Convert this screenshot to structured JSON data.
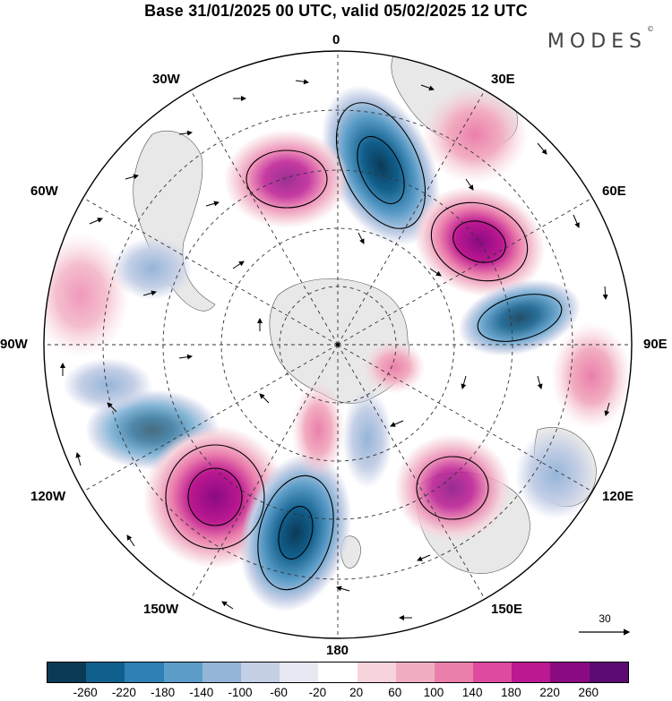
{
  "header": {
    "title": "Base 31/01/2025 00 UTC, valid 05/02/2025 12 UTC",
    "brand": "MODES",
    "brand_mark": "©"
  },
  "map": {
    "projection": "south polar stereographic",
    "variable_unit": "",
    "longitude_labels": {
      "top": "0",
      "top_right": "30E",
      "right_upper": "60E",
      "right": "90E",
      "right_lower": "120E",
      "bottom_right": "150E",
      "bottom": "180",
      "bottom_left": "150W",
      "left_lower": "120W",
      "left": "90W",
      "left_upper": "60W",
      "top_left": "30W"
    },
    "reference_vector": {
      "label": "30"
    },
    "colors": {
      "land": "#e8e8e8",
      "grid": "#333333"
    },
    "anomaly_centers": [
      {
        "sign": "negative",
        "value": -220,
        "location": "south Atlantic near 0-15E"
      },
      {
        "sign": "positive",
        "value": 140,
        "location": "30W"
      },
      {
        "sign": "positive",
        "value": 260,
        "location": "45E"
      },
      {
        "sign": "negative",
        "value": -180,
        "location": "75E"
      },
      {
        "sign": "negative",
        "value": -140,
        "location": "100W"
      },
      {
        "sign": "positive",
        "value": 260,
        "location": "135W"
      },
      {
        "sign": "negative",
        "value": -220,
        "location": "160W"
      },
      {
        "sign": "positive",
        "value": 180,
        "location": "140E"
      },
      {
        "sign": "positive",
        "value": 100,
        "location": "180"
      },
      {
        "sign": "negative",
        "value": -60,
        "location": "165E"
      }
    ]
  },
  "colorbar": {
    "tick_labels": [
      "-260",
      "-220",
      "-180",
      "-140",
      "-100",
      "-60",
      "-20",
      "20",
      "60",
      "100",
      "140",
      "180",
      "220",
      "260"
    ],
    "colors": [
      "#0b3a57",
      "#115f8c",
      "#2f80b5",
      "#5b9cc8",
      "#94b5d8",
      "#c5cfe6",
      "#e7e7f2",
      "#ffffff",
      "#f6d4dc",
      "#f2aec1",
      "#eb7fac",
      "#dd4aa0",
      "#bb1891",
      "#8a0a82",
      "#5a0c73"
    ]
  }
}
